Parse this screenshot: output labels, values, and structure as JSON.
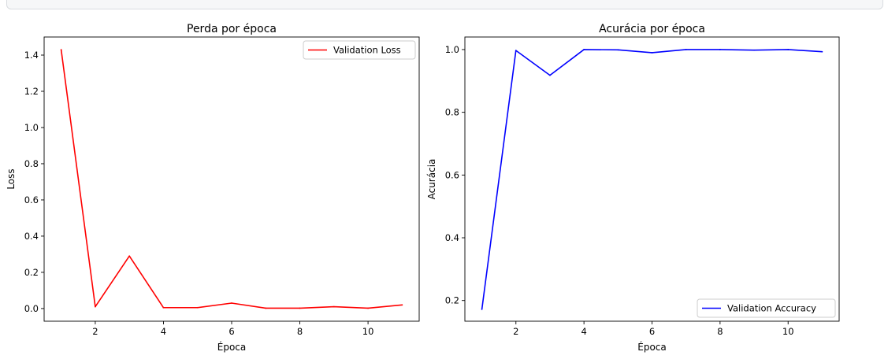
{
  "chart_data": [
    {
      "type": "line",
      "title": "Perda por época",
      "xlabel": "Época",
      "ylabel": "Loss",
      "xlim": [
        0.5,
        11.5
      ],
      "ylim": [
        -0.07,
        1.5
      ],
      "xticks": [
        2,
        4,
        6,
        8,
        10
      ],
      "xtick_labels": [
        "2",
        "4",
        "6",
        "8",
        "10"
      ],
      "yticks": [
        0.0,
        0.2,
        0.4,
        0.6,
        0.8,
        1.0,
        1.2,
        1.4
      ],
      "ytick_labels": [
        "0.0",
        "0.2",
        "0.4",
        "0.6",
        "0.8",
        "1.0",
        "1.2",
        "1.4"
      ],
      "grid": false,
      "legend": "top-right",
      "series": [
        {
          "name": "Validation Loss",
          "color": "#ff0000",
          "x": [
            1,
            2,
            3,
            4,
            5,
            6,
            7,
            8,
            9,
            10,
            11
          ],
          "values": [
            1.43,
            0.01,
            0.29,
            0.005,
            0.005,
            0.03,
            0.002,
            0.002,
            0.01,
            0.002,
            0.02
          ]
        }
      ]
    },
    {
      "type": "line",
      "title": "Acurácia por época",
      "xlabel": "Época",
      "ylabel": "Acurácia",
      "xlim": [
        0.5,
        11.5
      ],
      "ylim": [
        0.134,
        1.04
      ],
      "xticks": [
        2,
        4,
        6,
        8,
        10
      ],
      "xtick_labels": [
        "2",
        "4",
        "6",
        "8",
        "10"
      ],
      "yticks": [
        0.2,
        0.4,
        0.6,
        0.8,
        1.0
      ],
      "ytick_labels": [
        "0.2",
        "0.4",
        "0.6",
        "0.8",
        "1.0"
      ],
      "grid": false,
      "legend": "bottom-right",
      "series": [
        {
          "name": "Validation Accuracy",
          "color": "#0000ff",
          "x": [
            1,
            2,
            3,
            4,
            5,
            6,
            7,
            8,
            9,
            10,
            11
          ],
          "values": [
            0.172,
            0.997,
            0.918,
            1.0,
            0.999,
            0.99,
            1.0,
            1.0,
            0.998,
            1.0,
            0.993
          ]
        }
      ]
    }
  ]
}
